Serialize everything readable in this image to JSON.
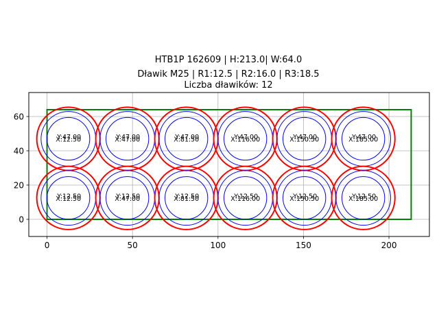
{
  "figure": {
    "title_lines": [
      "HTB1P 162609 | H:213.0| W:64.0",
      "Dławik M25 | R1:12.5 | R2:16.0 | R3:18.5",
      "Liczba dławików: 12"
    ]
  },
  "chart_data": {
    "type": "scatter",
    "title": "HTB1P 162609 | H:213.0| W:64.0\nDławik M25 | R1:12.5 | R2:16.0 | R3:18.5\nLiczba dławików: 12",
    "xlabel": "",
    "ylabel": "",
    "xlim": [
      -10.65,
      223.65
    ],
    "ylim": [
      -10,
      74
    ],
    "xticks": [
      0,
      50,
      100,
      150,
      200
    ],
    "yticks": [
      0,
      20,
      40,
      60
    ],
    "grid": true,
    "aspect": "equal",
    "rectangle": {
      "x": 0,
      "y": 0,
      "width": 213.0,
      "height": 64.0,
      "color": "#008000"
    },
    "radii": {
      "R1": 12.5,
      "R2": 16.0,
      "R3": 18.5
    },
    "circle_colors": {
      "R1": "#0000ff",
      "R2": "#0000ff",
      "R3": "#ff0000"
    },
    "glands": [
      {
        "x": 12.5,
        "y": 47.0,
        "label_x": "X:12.50",
        "label_y": "Y:47.00"
      },
      {
        "x": 47.0,
        "y": 47.0,
        "label_x": "X:47.00",
        "label_y": "Y:47.00"
      },
      {
        "x": 81.5,
        "y": 47.0,
        "label_x": "X:81.50",
        "label_y": "Y:47.00"
      },
      {
        "x": 116.0,
        "y": 47.0,
        "label_x": "X:116.00",
        "label_y": "Y:47.00"
      },
      {
        "x": 150.5,
        "y": 47.0,
        "label_x": "X:150.50",
        "label_y": "Y:47.00"
      },
      {
        "x": 185.0,
        "y": 47.0,
        "label_x": "X:185.00",
        "label_y": "Y:47.00"
      },
      {
        "x": 12.5,
        "y": 12.5,
        "label_x": "X:12.50",
        "label_y": "Y:12.50"
      },
      {
        "x": 47.0,
        "y": 12.5,
        "label_x": "X:47.00",
        "label_y": "Y:12.50"
      },
      {
        "x": 81.5,
        "y": 12.5,
        "label_x": "X:81.50",
        "label_y": "Y:12.50"
      },
      {
        "x": 116.0,
        "y": 12.5,
        "label_x": "X:116.00",
        "label_y": "Y:12.50"
      },
      {
        "x": 150.5,
        "y": 12.5,
        "label_x": "X:150.50",
        "label_y": "Y:12.50"
      },
      {
        "x": 185.0,
        "y": 12.5,
        "label_x": "X:185.00",
        "label_y": "Y:12.50"
      }
    ],
    "count": 12
  }
}
